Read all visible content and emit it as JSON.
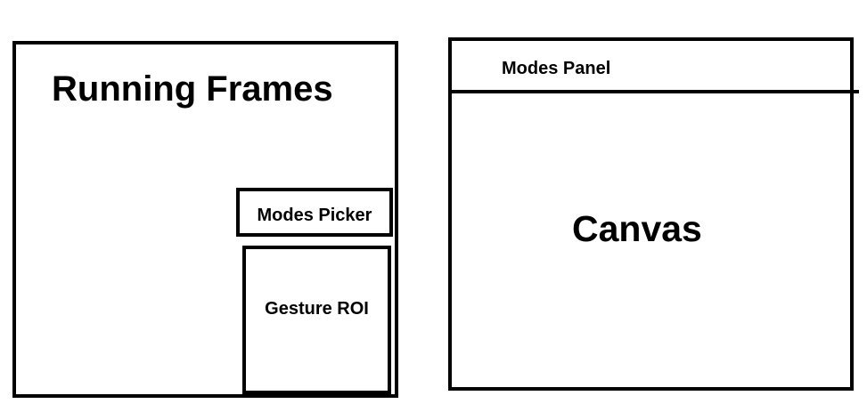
{
  "left_diagram": {
    "title": "Running Frames",
    "modes_picker": "Modes Picker",
    "gesture_roi": "Gesture ROI"
  },
  "right_diagram": {
    "modes_panel": "Modes Panel",
    "canvas": "Canvas"
  },
  "colors": {
    "stroke": "#000000",
    "background": "#ffffff"
  }
}
